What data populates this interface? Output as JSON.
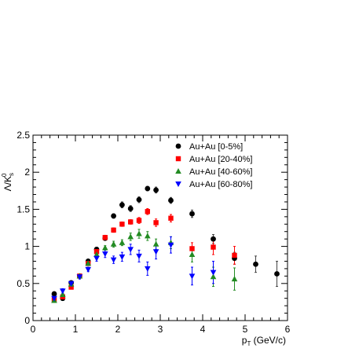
{
  "chart_data": {
    "type": "scatter",
    "xlabel": "p",
    "xlabel_sub": "T",
    "xlabel_unit": " (GeV/c)",
    "ylabel": "Λ/K",
    "ylabel_sub": "s",
    "ylabel_sup": "0",
    "xlim": [
      0,
      6
    ],
    "ylim": [
      0,
      2.5
    ],
    "x_ticks": [
      0,
      1,
      2,
      3,
      4,
      5,
      6
    ],
    "y_ticks": [
      0,
      0.5,
      1,
      1.5,
      2,
      2.5
    ],
    "legend_position": "top-right",
    "grid": false,
    "series": [
      {
        "name": "Au+Au [0-5%]",
        "marker": "circle",
        "color": "#000000",
        "points": [
          {
            "x": 0.5,
            "y": 0.36,
            "err": 0.03
          },
          {
            "x": 0.7,
            "y": 0.3,
            "err": 0.03
          },
          {
            "x": 0.9,
            "y": 0.51,
            "err": 0.02
          },
          {
            "x": 1.1,
            "y": 0.6,
            "err": 0.02
          },
          {
            "x": 1.3,
            "y": 0.8,
            "err": 0.03
          },
          {
            "x": 1.5,
            "y": 0.96,
            "err": 0.03
          },
          {
            "x": 1.7,
            "y": 1.11,
            "err": 0.03
          },
          {
            "x": 1.9,
            "y": 1.41,
            "err": 0.03
          },
          {
            "x": 2.1,
            "y": 1.56,
            "err": 0.04
          },
          {
            "x": 2.3,
            "y": 1.51,
            "err": 0.04
          },
          {
            "x": 2.5,
            "y": 1.63,
            "err": 0.04
          },
          {
            "x": 2.7,
            "y": 1.78,
            "err": 0.03
          },
          {
            "x": 2.9,
            "y": 1.76,
            "err": 0.04
          },
          {
            "x": 3.25,
            "y": 1.62,
            "err": 0.04
          },
          {
            "x": 3.75,
            "y": 1.44,
            "err": 0.05
          },
          {
            "x": 4.25,
            "y": 1.1,
            "err": 0.06
          },
          {
            "x": 4.75,
            "y": 0.84,
            "err": 0.08
          },
          {
            "x": 5.25,
            "y": 0.76,
            "err": 0.11
          },
          {
            "x": 5.75,
            "y": 0.63,
            "err": 0.17
          }
        ]
      },
      {
        "name": "Au+Au [20-40%]",
        "marker": "square",
        "color": "#ff0000",
        "points": [
          {
            "x": 0.5,
            "y": 0.28,
            "err": 0.02
          },
          {
            "x": 0.7,
            "y": 0.32,
            "err": 0.02
          },
          {
            "x": 0.9,
            "y": 0.45,
            "err": 0.02
          },
          {
            "x": 1.1,
            "y": 0.6,
            "err": 0.02
          },
          {
            "x": 1.3,
            "y": 0.77,
            "err": 0.02
          },
          {
            "x": 1.5,
            "y": 0.93,
            "err": 0.03
          },
          {
            "x": 1.7,
            "y": 1.12,
            "err": 0.03
          },
          {
            "x": 1.9,
            "y": 1.22,
            "err": 0.03
          },
          {
            "x": 2.1,
            "y": 1.3,
            "err": 0.03
          },
          {
            "x": 2.3,
            "y": 1.33,
            "err": 0.03
          },
          {
            "x": 2.5,
            "y": 1.35,
            "err": 0.04
          },
          {
            "x": 2.7,
            "y": 1.47,
            "err": 0.04
          },
          {
            "x": 2.9,
            "y": 1.32,
            "err": 0.05
          },
          {
            "x": 3.25,
            "y": 1.38,
            "err": 0.05
          },
          {
            "x": 3.75,
            "y": 0.97,
            "err": 0.08
          },
          {
            "x": 4.25,
            "y": 0.99,
            "err": 0.1
          },
          {
            "x": 4.75,
            "y": 0.88,
            "err": 0.12
          }
        ]
      },
      {
        "name": "Au+Au [40-60%]",
        "marker": "triangle-up",
        "color": "#228b22",
        "points": [
          {
            "x": 0.5,
            "y": 0.27,
            "err": 0.02
          },
          {
            "x": 0.7,
            "y": 0.35,
            "err": 0.02
          },
          {
            "x": 0.9,
            "y": 0.49,
            "err": 0.02
          },
          {
            "x": 1.1,
            "y": 0.6,
            "err": 0.02
          },
          {
            "x": 1.3,
            "y": 0.77,
            "err": 0.03
          },
          {
            "x": 1.5,
            "y": 0.89,
            "err": 0.03
          },
          {
            "x": 1.7,
            "y": 0.98,
            "err": 0.03
          },
          {
            "x": 1.9,
            "y": 1.03,
            "err": 0.04
          },
          {
            "x": 2.1,
            "y": 1.05,
            "err": 0.04
          },
          {
            "x": 2.3,
            "y": 1.13,
            "err": 0.05
          },
          {
            "x": 2.5,
            "y": 1.17,
            "err": 0.06
          },
          {
            "x": 2.7,
            "y": 1.14,
            "err": 0.06
          },
          {
            "x": 2.9,
            "y": 1.03,
            "err": 0.07
          },
          {
            "x": 3.25,
            "y": 1.05,
            "err": 0.08
          },
          {
            "x": 3.75,
            "y": 0.89,
            "err": 0.1
          },
          {
            "x": 4.25,
            "y": 0.59,
            "err": 0.13
          },
          {
            "x": 4.75,
            "y": 0.56,
            "err": 0.15
          }
        ]
      },
      {
        "name": "Au+Au [60-80%]",
        "marker": "triangle-down",
        "color": "#0000ff",
        "points": [
          {
            "x": 0.5,
            "y": 0.3,
            "err": 0.03
          },
          {
            "x": 0.7,
            "y": 0.4,
            "err": 0.03
          },
          {
            "x": 0.9,
            "y": 0.5,
            "err": 0.03
          },
          {
            "x": 1.1,
            "y": 0.59,
            "err": 0.03
          },
          {
            "x": 1.3,
            "y": 0.69,
            "err": 0.03
          },
          {
            "x": 1.5,
            "y": 0.84,
            "err": 0.04
          },
          {
            "x": 1.7,
            "y": 0.9,
            "err": 0.05
          },
          {
            "x": 1.9,
            "y": 0.82,
            "err": 0.05
          },
          {
            "x": 2.1,
            "y": 0.86,
            "err": 0.06
          },
          {
            "x": 2.3,
            "y": 0.96,
            "err": 0.07
          },
          {
            "x": 2.5,
            "y": 0.87,
            "err": 0.08
          },
          {
            "x": 2.7,
            "y": 0.7,
            "err": 0.09
          },
          {
            "x": 2.9,
            "y": 0.93,
            "err": 0.1
          },
          {
            "x": 3.25,
            "y": 1.02,
            "err": 0.11
          },
          {
            "x": 3.75,
            "y": 0.6,
            "err": 0.12
          },
          {
            "x": 4.25,
            "y": 0.65,
            "err": 0.15
          }
        ]
      }
    ]
  }
}
